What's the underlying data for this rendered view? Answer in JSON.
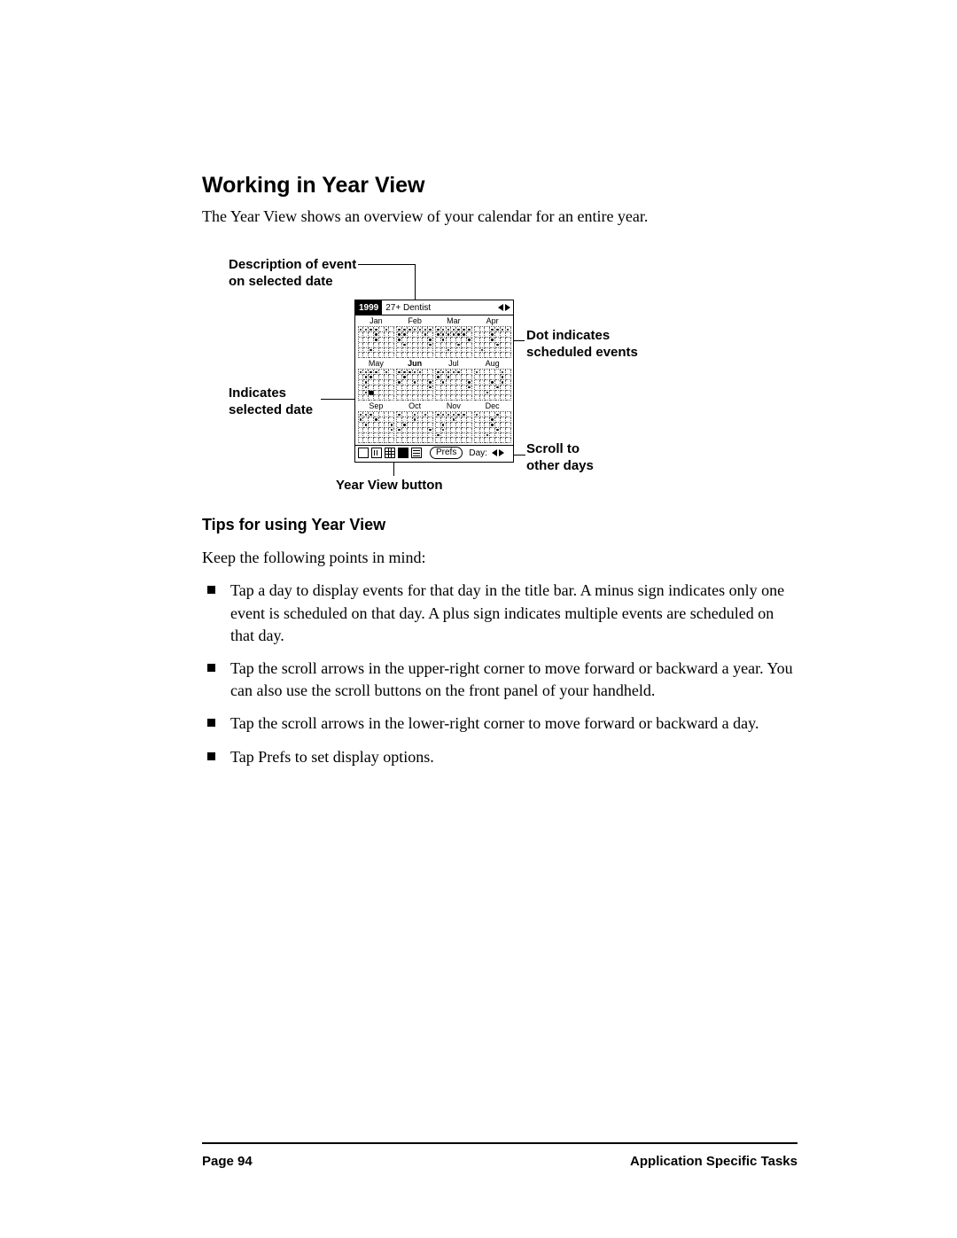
{
  "headings": {
    "h1": "Working in Year View",
    "h2": "Tips for using Year View"
  },
  "intro": "The Year View shows an overview of your calendar for an entire year.",
  "callouts": {
    "desc_event": "Description of event\non selected date",
    "selected_date": "Indicates\nselected date",
    "year_view_button": "Year View button",
    "dot_indicates": "Dot indicates\nscheduled events",
    "scroll_days": "Scroll to\nother days"
  },
  "screenshot": {
    "year": "1999",
    "event_text": "27+ Dentist",
    "months": [
      "Jan",
      "Feb",
      "Mar",
      "Apr",
      "May",
      "Jun",
      "Jul",
      "Aug",
      "Sep",
      "Oct",
      "Nov",
      "Dec"
    ],
    "bold_month_index": 5,
    "prefs_label": "Prefs",
    "day_label": "Day:",
    "month_dots": {
      "0": [
        0,
        1,
        2,
        3,
        5,
        10,
        17,
        30
      ],
      "1": [
        0,
        1,
        2,
        3,
        4,
        5,
        6,
        7,
        8,
        12,
        14,
        20,
        22,
        27
      ],
      "2": [
        0,
        1,
        2,
        3,
        4,
        5,
        6,
        7,
        8,
        9,
        10,
        11,
        12,
        15,
        20,
        25,
        30
      ],
      "3": [
        3,
        4,
        5,
        6,
        10,
        17,
        25,
        29
      ],
      "4": [
        0,
        1,
        2,
        3,
        5,
        8,
        9,
        15,
        22,
        29,
        30
      ],
      "5": [
        0,
        1,
        2,
        3,
        4,
        8,
        14,
        17,
        20,
        27
      ],
      "6": [
        0,
        1,
        2,
        3,
        4,
        7,
        9,
        15,
        20,
        27
      ],
      "7": [
        0,
        5,
        12,
        17,
        19,
        25,
        30
      ],
      "8": [
        0,
        1,
        2,
        7,
        10,
        15,
        20,
        27
      ],
      "9": [
        0,
        3,
        5,
        10,
        15,
        21,
        27
      ],
      "10": [
        0,
        1,
        2,
        3,
        4,
        5,
        10,
        15,
        22,
        28
      ],
      "11": [
        0,
        4,
        10,
        17,
        25,
        30
      ]
    },
    "selected_cell": {
      "month": 4,
      "cell": 30
    }
  },
  "tips_intro": "Keep the following points in mind:",
  "tips": [
    "Tap a day to display events for that day in the title bar. A minus sign indicates only one event is scheduled on that day. A plus sign indicates multiple events are scheduled on that day.",
    "Tap the scroll arrows in the upper-right corner to move forward or backward a year. You can also use the scroll buttons on the front panel of your handheld.",
    "Tap the scroll arrows in the lower-right corner to move forward or backward a day.",
    "Tap Prefs to set display options."
  ],
  "footer": {
    "page": "Page 94",
    "section": "Application Specific Tasks"
  },
  "colors": {
    "text": "#000000",
    "background": "#ffffff"
  }
}
